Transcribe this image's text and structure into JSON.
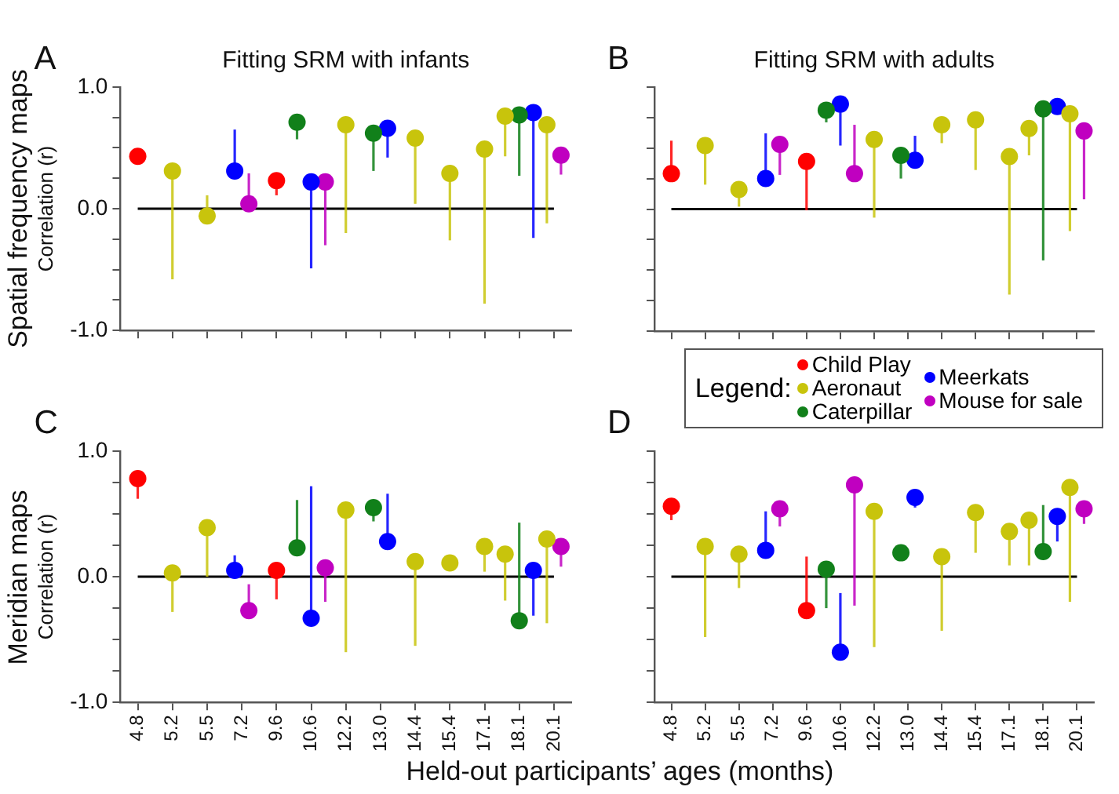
{
  "chart_data": [
    {
      "type": "scatter",
      "title": "Fitting SRM with infants",
      "ylabel": "Correlation (r)",
      "categories": [
        "4.8",
        "5.2",
        "5.5",
        "7.2",
        "9.6",
        "10.6",
        "12.2",
        "13.0",
        "14.4",
        "15.4",
        "17.1",
        "18.1",
        "20.1"
      ],
      "ylim": [
        -1,
        1
      ],
      "yticks": [
        {
          "value": -1,
          "label": "-1.0"
        },
        {
          "value": -0.75,
          "label": null
        },
        {
          "value": -0.5,
          "label": null
        },
        {
          "value": -0.25,
          "label": null
        },
        {
          "value": 0,
          "label": "0.0"
        },
        {
          "value": 0.25,
          "label": null
        },
        {
          "value": 0.5,
          "label": null
        },
        {
          "value": 0.75,
          "label": null
        },
        {
          "value": 1,
          "label": "1.0"
        }
      ],
      "tick_labels": "y",
      "grid": false,
      "marker": "circle",
      "ref_lines": [
        {
          "axis": "y",
          "value": 0,
          "color": "#000000"
        }
      ],
      "annotations": [
        "A",
        "Spatial frequency maps"
      ],
      "series": [
        {
          "color": "#ff0000",
          "values": [
            0.43,
            null,
            null,
            null,
            0.23,
            null,
            null,
            null,
            null,
            null,
            null,
            null,
            null
          ],
          "errors": [
            null,
            null,
            null,
            null,
            [
              0.11,
              0.23
            ],
            null,
            null,
            null,
            null,
            null,
            null,
            null,
            null
          ]
        },
        {
          "color": "#c8c40c",
          "values": [
            null,
            0.31,
            -0.06,
            null,
            null,
            null,
            0.69,
            null,
            0.58,
            0.29,
            0.49,
            0.76,
            0.69
          ],
          "errors": [
            null,
            [
              -0.58,
              0.31
            ],
            [
              -0.06,
              0.11
            ],
            null,
            null,
            null,
            [
              -0.2,
              0.69
            ],
            null,
            [
              0.04,
              0.58
            ],
            [
              -0.26,
              0.29
            ],
            [
              -0.78,
              0.49
            ],
            [
              0.43,
              0.76
            ],
            [
              -0.12,
              0.69
            ]
          ]
        },
        {
          "color": "#11801a",
          "values": [
            null,
            null,
            null,
            null,
            null,
            0.71,
            null,
            0.62,
            null,
            null,
            null,
            0.77,
            null
          ],
          "errors": [
            null,
            null,
            null,
            null,
            null,
            [
              0.57,
              0.71
            ],
            null,
            [
              0.31,
              0.62
            ],
            null,
            null,
            null,
            [
              0.27,
              0.77
            ],
            null
          ]
        },
        {
          "color": "#0000ff",
          "values": [
            null,
            null,
            null,
            0.31,
            null,
            0.22,
            null,
            0.66,
            null,
            null,
            null,
            0.79,
            null
          ],
          "errors": [
            null,
            null,
            null,
            [
              0.31,
              0.65
            ],
            null,
            [
              -0.49,
              0.22
            ],
            null,
            [
              0.42,
              0.66
            ],
            null,
            null,
            null,
            [
              -0.24,
              0.79
            ],
            null
          ]
        },
        {
          "color": "#c000c0",
          "values": [
            null,
            null,
            null,
            0.04,
            null,
            0.22,
            null,
            null,
            null,
            null,
            null,
            null,
            0.44
          ],
          "errors": [
            null,
            null,
            null,
            [
              0.04,
              0.29
            ],
            null,
            [
              -0.3,
              0.22
            ],
            null,
            null,
            null,
            null,
            null,
            null,
            [
              0.28,
              0.44
            ]
          ]
        }
      ]
    },
    {
      "type": "scatter",
      "title": "Fitting SRM with adults",
      "categories": [
        "4.8",
        "5.2",
        "5.5",
        "7.2",
        "9.6",
        "10.6",
        "12.2",
        "13.0",
        "14.4",
        "15.4",
        "17.1",
        "18.1",
        "20.1"
      ],
      "ylim": [
        -1,
        1
      ],
      "yticks": [
        {
          "value": -1,
          "label": null
        },
        {
          "value": -0.75,
          "label": null
        },
        {
          "value": -0.5,
          "label": null
        },
        {
          "value": -0.25,
          "label": null
        },
        {
          "value": 0,
          "label": null
        },
        {
          "value": 0.25,
          "label": null
        },
        {
          "value": 0.5,
          "label": null
        },
        {
          "value": 0.75,
          "label": null
        },
        {
          "value": 1,
          "label": null
        }
      ],
      "tick_labels": false,
      "grid": false,
      "marker": "circle",
      "ref_lines": [
        {
          "axis": "y",
          "value": 0,
          "color": "#000000"
        }
      ],
      "annotations": [
        "B"
      ],
      "series": [
        {
          "color": "#ff0000",
          "values": [
            0.29,
            null,
            null,
            null,
            0.39,
            null,
            null,
            null,
            null,
            null,
            null,
            null,
            null
          ],
          "errors": [
            [
              0.29,
              0.56
            ],
            null,
            null,
            null,
            [
              -0.01,
              0.39
            ],
            null,
            null,
            null,
            null,
            null,
            null,
            null,
            null
          ]
        },
        {
          "color": "#c8c40c",
          "values": [
            null,
            0.52,
            0.16,
            null,
            null,
            null,
            0.57,
            null,
            0.69,
            0.73,
            0.43,
            0.66,
            0.78
          ],
          "errors": [
            null,
            [
              0.2,
              0.52
            ],
            [
              0.02,
              0.16
            ],
            null,
            null,
            null,
            [
              -0.07,
              0.57
            ],
            null,
            [
              0.54,
              0.69
            ],
            [
              0.32,
              0.73
            ],
            [
              -0.7,
              0.43
            ],
            [
              0.44,
              0.66
            ],
            [
              -0.18,
              0.78
            ]
          ]
        },
        {
          "color": "#11801a",
          "values": [
            null,
            null,
            null,
            null,
            null,
            0.81,
            null,
            0.44,
            null,
            null,
            null,
            0.82,
            null
          ],
          "errors": [
            null,
            null,
            null,
            null,
            null,
            [
              0.71,
              0.81
            ],
            null,
            [
              0.25,
              0.44
            ],
            null,
            null,
            null,
            [
              -0.42,
              0.82
            ],
            null
          ]
        },
        {
          "color": "#0000ff",
          "values": [
            null,
            null,
            null,
            0.25,
            null,
            0.86,
            null,
            0.4,
            null,
            null,
            null,
            0.84,
            null
          ],
          "errors": [
            null,
            null,
            null,
            [
              0.25,
              0.62
            ],
            null,
            [
              0.52,
              0.86
            ],
            null,
            [
              0.4,
              0.6
            ],
            null,
            null,
            null,
            null,
            null
          ]
        },
        {
          "color": "#c000c0",
          "values": [
            null,
            null,
            null,
            0.53,
            null,
            0.29,
            null,
            null,
            null,
            null,
            null,
            null,
            0.64
          ],
          "errors": [
            null,
            null,
            null,
            [
              0.28,
              0.53
            ],
            null,
            [
              0.29,
              0.69
            ],
            null,
            null,
            null,
            null,
            null,
            null,
            [
              0.08,
              0.64
            ]
          ]
        }
      ]
    },
    {
      "type": "scatter",
      "ylabel": "Correlation (r)",
      "xlabel": "Held-out participants’ ages (months)",
      "categories": [
        "4.8",
        "5.2",
        "5.5",
        "7.2",
        "9.6",
        "10.6",
        "12.2",
        "13.0",
        "14.4",
        "15.4",
        "17.1",
        "18.1",
        "20.1"
      ],
      "ylim": [
        -1,
        1
      ],
      "yticks": [
        {
          "value": -1,
          "label": "-1.0"
        },
        {
          "value": -0.75,
          "label": null
        },
        {
          "value": -0.5,
          "label": null
        },
        {
          "value": -0.25,
          "label": null
        },
        {
          "value": 0,
          "label": "0.0"
        },
        {
          "value": 0.25,
          "label": null
        },
        {
          "value": 0.5,
          "label": null
        },
        {
          "value": 0.75,
          "label": null
        },
        {
          "value": 1,
          "label": "1.0"
        }
      ],
      "grid": false,
      "marker": "circle",
      "ref_lines": [
        {
          "axis": "y",
          "value": 0,
          "color": "#000000"
        }
      ],
      "annotations": [
        "C",
        "Meridian maps"
      ],
      "series": [
        {
          "color": "#ff0000",
          "values": [
            0.78,
            null,
            null,
            null,
            0.05,
            null,
            null,
            null,
            null,
            null,
            null,
            null,
            null
          ],
          "errors": [
            [
              0.62,
              0.78
            ],
            null,
            null,
            null,
            [
              -0.18,
              0.05
            ],
            null,
            null,
            null,
            null,
            null,
            null,
            null,
            null
          ]
        },
        {
          "color": "#c8c40c",
          "values": [
            null,
            0.03,
            0.39,
            null,
            null,
            null,
            0.53,
            null,
            0.12,
            0.11,
            0.24,
            0.18,
            0.3
          ],
          "errors": [
            null,
            [
              -0.28,
              0.03
            ],
            [
              0,
              0.39
            ],
            null,
            null,
            null,
            [
              -0.6,
              0.53
            ],
            null,
            [
              -0.55,
              0.12
            ],
            null,
            [
              0.04,
              0.24
            ],
            [
              -0.19,
              0.18
            ],
            [
              -0.37,
              0.3
            ]
          ]
        },
        {
          "color": "#11801a",
          "values": [
            null,
            null,
            null,
            null,
            null,
            0.23,
            null,
            0.55,
            null,
            null,
            null,
            -0.35,
            null
          ],
          "errors": [
            null,
            null,
            null,
            null,
            null,
            [
              0.23,
              0.61
            ],
            null,
            [
              0.44,
              0.55
            ],
            null,
            null,
            null,
            [
              -0.35,
              0.43
            ],
            null
          ]
        },
        {
          "color": "#0000ff",
          "values": [
            null,
            null,
            null,
            0.05,
            null,
            -0.33,
            null,
            0.28,
            null,
            null,
            null,
            0.05,
            null
          ],
          "errors": [
            null,
            null,
            null,
            [
              0.05,
              0.17
            ],
            null,
            [
              -0.33,
              0.72
            ],
            null,
            [
              0.28,
              0.66
            ],
            null,
            null,
            null,
            [
              -0.31,
              0.05
            ],
            null
          ]
        },
        {
          "color": "#c000c0",
          "values": [
            null,
            null,
            null,
            -0.27,
            null,
            0.07,
            null,
            null,
            null,
            null,
            null,
            null,
            0.24
          ],
          "errors": [
            null,
            null,
            null,
            [
              -0.27,
              -0.06
            ],
            null,
            [
              -0.2,
              0.07
            ],
            null,
            null,
            null,
            null,
            null,
            null,
            [
              0.08,
              0.24
            ]
          ]
        }
      ]
    },
    {
      "type": "scatter",
      "categories": [
        "4.8",
        "5.2",
        "5.5",
        "7.2",
        "9.6",
        "10.6",
        "12.2",
        "13.0",
        "14.4",
        "15.4",
        "17.1",
        "18.1",
        "20.1"
      ],
      "ylim": [
        -1,
        1
      ],
      "yticks": [
        {
          "value": -1,
          "label": null
        },
        {
          "value": -0.75,
          "label": null
        },
        {
          "value": -0.5,
          "label": null
        },
        {
          "value": -0.25,
          "label": null
        },
        {
          "value": 0,
          "label": null
        },
        {
          "value": 0.25,
          "label": null
        },
        {
          "value": 0.5,
          "label": null
        },
        {
          "value": 0.75,
          "label": null
        },
        {
          "value": 1,
          "label": null
        }
      ],
      "tick_labels": "x",
      "grid": false,
      "marker": "circle",
      "legend": "top right",
      "legend_title": "Legend:",
      "ref_lines": [
        {
          "axis": "y",
          "value": 0,
          "color": "#000000"
        }
      ],
      "annotations": [
        "D"
      ],
      "series": [
        {
          "name": "Child Play",
          "color": "#ff0000",
          "values": [
            0.56,
            null,
            null,
            null,
            -0.27,
            null,
            null,
            null,
            null,
            null,
            null,
            null,
            null
          ],
          "errors": [
            [
              0.45,
              0.56
            ],
            null,
            null,
            null,
            [
              -0.27,
              0.16
            ],
            null,
            null,
            null,
            null,
            null,
            null,
            null,
            null
          ]
        },
        {
          "name": "Aeronaut",
          "color": "#c8c40c",
          "values": [
            null,
            0.24,
            0.18,
            null,
            null,
            null,
            0.52,
            null,
            0.16,
            0.51,
            0.36,
            0.45,
            0.71
          ],
          "errors": [
            null,
            [
              -0.48,
              0.24
            ],
            [
              -0.09,
              0.18
            ],
            null,
            null,
            null,
            [
              -0.56,
              0.52
            ],
            null,
            [
              -0.43,
              0.16
            ],
            [
              0.19,
              0.51
            ],
            [
              0.09,
              0.36
            ],
            [
              0.09,
              0.45
            ],
            [
              -0.2,
              0.71
            ]
          ]
        },
        {
          "name": "Caterpillar",
          "color": "#11801a",
          "values": [
            null,
            null,
            null,
            null,
            null,
            0.06,
            null,
            0.19,
            null,
            null,
            null,
            0.2,
            null
          ],
          "errors": [
            null,
            null,
            null,
            null,
            null,
            [
              -0.25,
              0.06
            ],
            null,
            null,
            null,
            null,
            null,
            [
              0.2,
              0.57
            ],
            null
          ]
        },
        {
          "name": "Meerkats",
          "color": "#0000ff",
          "values": [
            null,
            null,
            null,
            0.21,
            null,
            -0.6,
            null,
            0.63,
            null,
            null,
            null,
            0.48,
            null
          ],
          "errors": [
            null,
            null,
            null,
            [
              0.21,
              0.52
            ],
            null,
            [
              -0.6,
              -0.13
            ],
            null,
            [
              0.55,
              0.63
            ],
            null,
            null,
            null,
            [
              0.28,
              0.48
            ],
            null
          ]
        },
        {
          "name": "Mouse for sale",
          "color": "#c000c0",
          "values": [
            null,
            null,
            null,
            0.54,
            null,
            0.73,
            null,
            null,
            null,
            null,
            null,
            null,
            0.54
          ],
          "errors": [
            null,
            null,
            null,
            [
              0.4,
              0.54
            ],
            null,
            [
              -0.23,
              0.73
            ],
            null,
            null,
            null,
            null,
            null,
            null,
            [
              0.42,
              0.54
            ]
          ]
        }
      ]
    }
  ]
}
